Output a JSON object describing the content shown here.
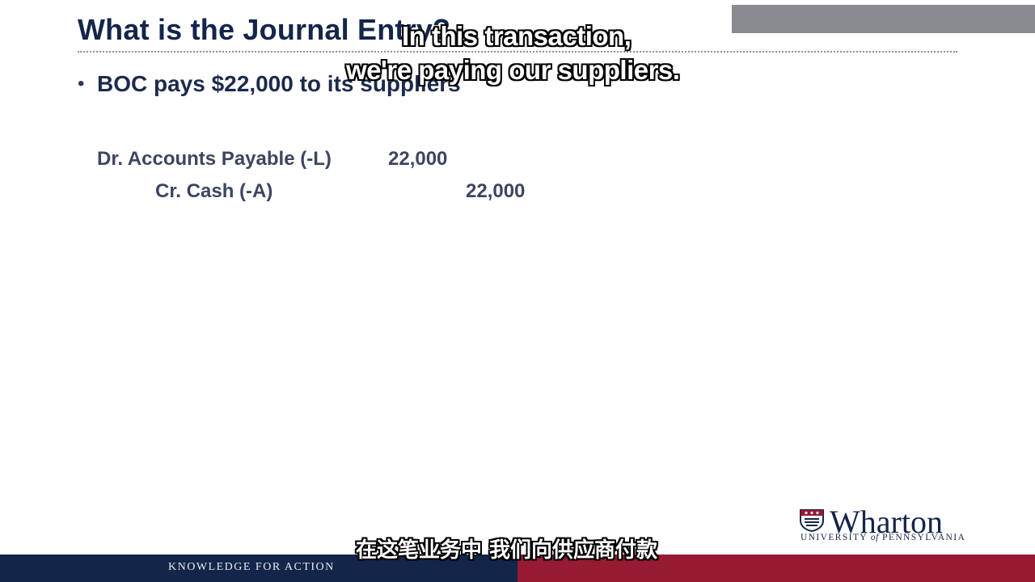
{
  "slide": {
    "title": "What is the Journal Entry?",
    "bullet": "BOC pays $22,000 to its suppliers",
    "journal_entry": {
      "debit": {
        "label": "Dr. Accounts Payable (-L)",
        "amount": "22,000"
      },
      "credit": {
        "label": "Cr. Cash (-A)",
        "amount": "22,000"
      }
    }
  },
  "subtitles": {
    "english_line1": "In this transaction,",
    "english_line2": "we're paying our suppliers.",
    "chinese": "在这笔业务中 我们向供应商付款"
  },
  "branding": {
    "logo_word": "Wharton",
    "logo_sub_upper": "UNIVERSITY",
    "logo_sub_of": "of",
    "logo_sub_lower": "PENNSYLVANIA",
    "footer_text": "KNOWLEDGE FOR ACTION"
  },
  "colors": {
    "navy": "#14254a",
    "crimson": "#951a32",
    "gray_bar": "#8a8b8f"
  }
}
